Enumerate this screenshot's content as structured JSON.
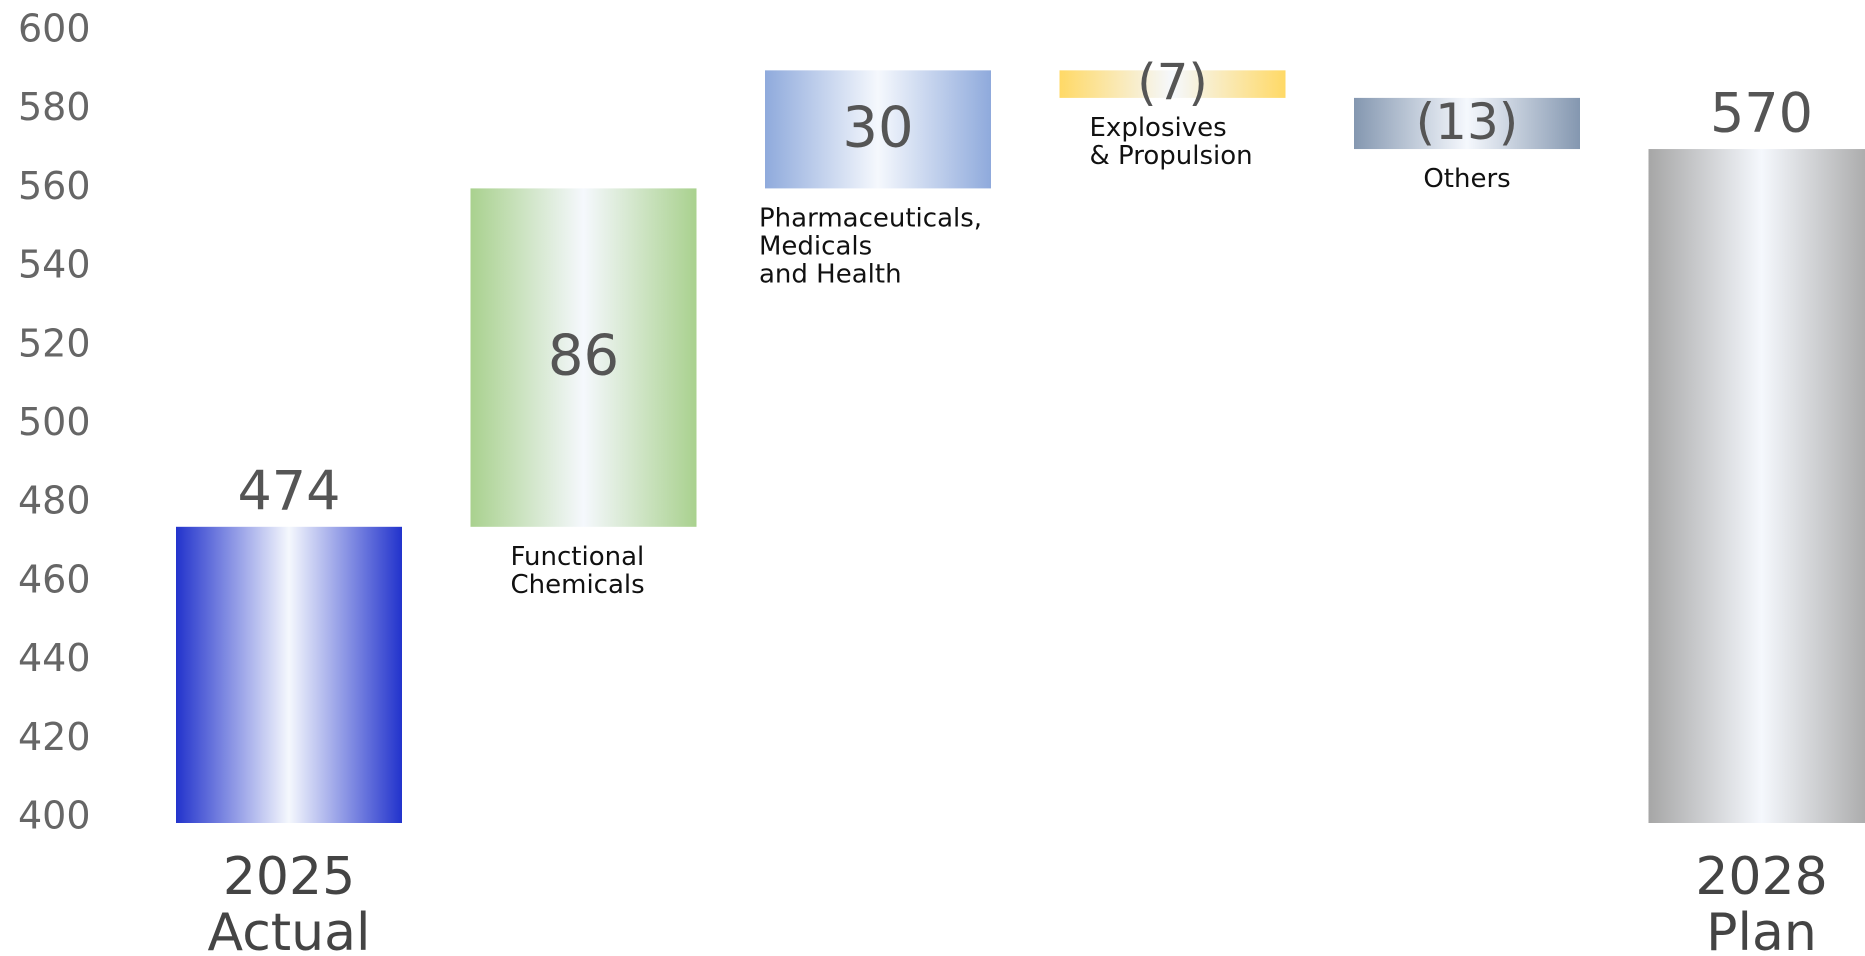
{
  "chart_data": {
    "type": "waterfall",
    "categories": [
      [
        "2025",
        "Actual"
      ],
      [
        "Functional",
        "Chemicals"
      ],
      [
        "Pharmaceuticals,",
        "Medicals",
        "and Health"
      ],
      [
        "Explosives",
        "& Propulsion"
      ],
      [
        "Others"
      ],
      [
        "2028",
        "Plan"
      ]
    ],
    "values": [
      474,
      86,
      30,
      -7,
      -13,
      570
    ],
    "value_labels": [
      "474",
      "86",
      "30",
      "(7)",
      "(13)",
      "570"
    ],
    "colors": [
      "#2233cc",
      "#a9d18e",
      "#8faadc",
      "#ffd966",
      "#8497b0",
      "#a6a6a6"
    ],
    "ylim": [
      400,
      600
    ],
    "yticks": [
      400,
      420,
      440,
      460,
      480,
      500,
      520,
      540,
      560,
      580,
      600
    ],
    "grid": false
  }
}
